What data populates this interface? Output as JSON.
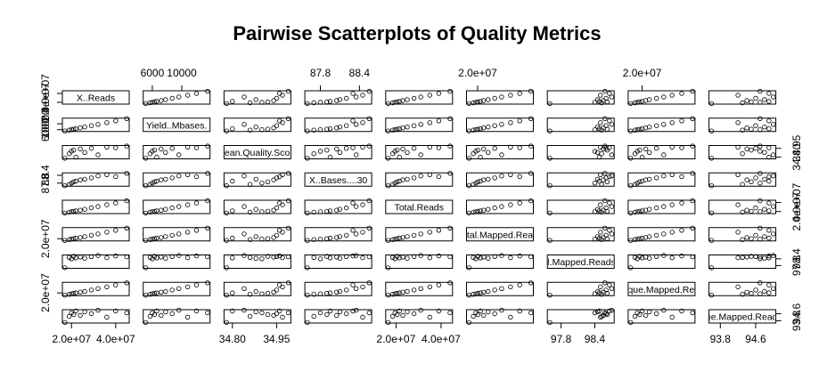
{
  "chart_data": {
    "type": "scatter",
    "title": "Pairwise Scatterplots of Quality Metrics",
    "variables": [
      {
        "label": "X..Reads",
        "ticks": [
          20000000,
          40000000
        ],
        "tick_labels": [
          "2.0e+07",
          "4.0e+07"
        ],
        "tick_side": "bottom-left"
      },
      {
        "label": "Yield..Mbases.",
        "ticks": [
          6000,
          10000
        ],
        "tick_labels": [
          "6000",
          "10000"
        ],
        "tick_side": "top-left"
      },
      {
        "label": "Mean.Quality.Score",
        "ticks": [
          34.8,
          34.95
        ],
        "tick_labels": [
          "34.80",
          "34.95"
        ],
        "tick_side": "bottom-right"
      },
      {
        "label": "X..Bases....30",
        "ticks": [
          87.8,
          88.4
        ],
        "tick_labels": [
          "87.8",
          "88.4"
        ],
        "tick_side": "top-left"
      },
      {
        "label": "Total.Reads",
        "ticks": [
          20000000,
          40000000
        ],
        "tick_labels": [
          "2.0e+07",
          "4.0e+07"
        ],
        "tick_side": "bottom-right"
      },
      {
        "label": "Total.Mapped.Reads",
        "ticks": [
          20000000
        ],
        "tick_labels": [
          "2.0e+07"
        ],
        "tick_side": "top-left"
      },
      {
        "label": "Total.Mapped.Reads.Pct",
        "ticks": [
          97.8,
          98.4
        ],
        "tick_labels": [
          "97.8",
          "98.4"
        ],
        "tick_side": "bottom-right"
      },
      {
        "label": "Unique.Mapped.Reads",
        "ticks": [
          20000000
        ],
        "tick_labels": [
          "2.0e+07"
        ],
        "tick_side": "top-left"
      },
      {
        "label": "Unique.Mapped.Reads.Pct",
        "ticks": [
          93.8,
          94.6
        ],
        "tick_labels": [
          "93.8",
          "94.6"
        ],
        "tick_side": "bottom-right"
      }
    ],
    "samples": [
      [
        17000000,
        5100,
        34.78,
        87.6,
        16500000,
        16200000,
        97.6,
        15200000,
        93.6
      ],
      [
        19000000,
        5700,
        34.86,
        87.7,
        18500000,
        18100000,
        98.52,
        17000000,
        94.3
      ],
      [
        20000000,
        6000,
        34.9,
        87.8,
        19500000,
        19200000,
        98.4,
        18000000,
        94.7
      ],
      [
        21000000,
        6300,
        34.92,
        87.9,
        20500000,
        20100000,
        98.62,
        19000000,
        94.5
      ],
      [
        22000000,
        6600,
        34.8,
        87.95,
        21500000,
        21200000,
        98.48,
        20000000,
        94.9
      ],
      [
        24000000,
        7200,
        34.94,
        88.05,
        23000000,
        22600000,
        98.55,
        21500000,
        94.4
      ],
      [
        26000000,
        7800,
        34.88,
        88.1,
        25000000,
        24600000,
        98.45,
        23000000,
        94.8
      ],
      [
        29000000,
        8700,
        34.95,
        88.2,
        28000000,
        27500000,
        98.6,
        26000000,
        94.6
      ],
      [
        32000000,
        9600,
        34.84,
        88.35,
        31000000,
        30500000,
        98.7,
        29000000,
        95.0
      ],
      [
        36000000,
        10800,
        34.97,
        88.45,
        35000000,
        34400000,
        98.5,
        32500000,
        94.2
      ],
      [
        40000000,
        12000,
        34.96,
        88.3,
        39000000,
        38400000,
        98.66,
        36500000,
        94.9
      ],
      [
        45000000,
        13500,
        34.99,
        88.55,
        44000000,
        43300000,
        98.58,
        41000000,
        94.7
      ]
    ],
    "grid": false,
    "legend": "none"
  }
}
